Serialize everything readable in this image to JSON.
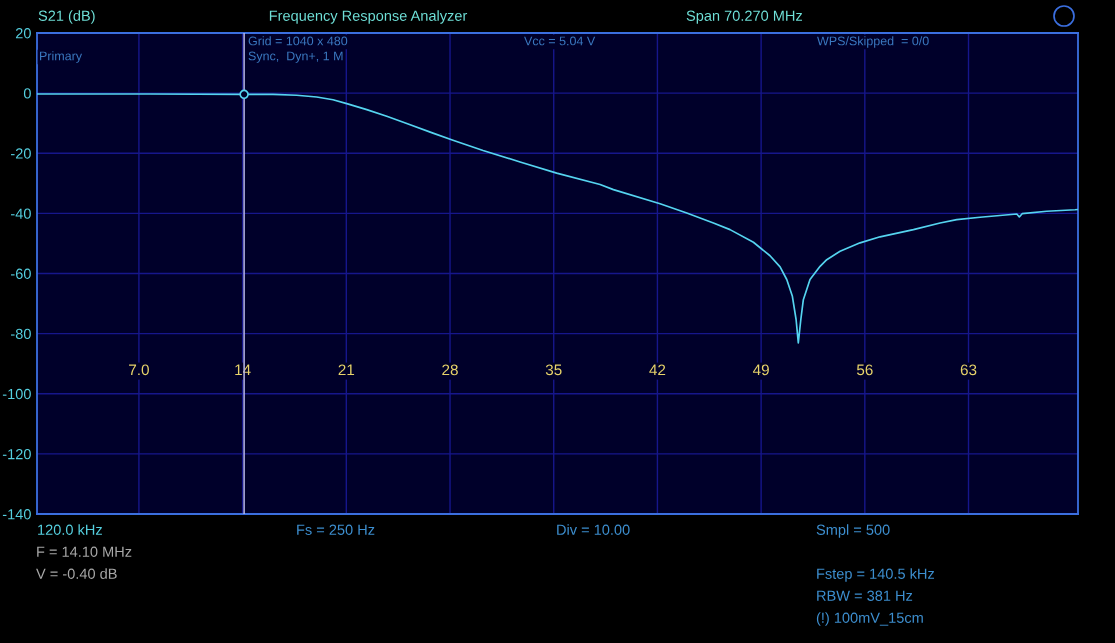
{
  "chart_data": {
    "type": "line",
    "title": "Frequency Response Analyzer",
    "ylabel": "S21 (dB)",
    "x": [
      0.12,
      7.75,
      14.1,
      16.05,
      17.65,
      19.0,
      20.1,
      21.03,
      22.38,
      23.73,
      25.08,
      26.85,
      28.2,
      30.23,
      32.73,
      35.2,
      38.13,
      39.03,
      42.18,
      43.98,
      45.78,
      46.9,
      48.48,
      49.6,
      50.28,
      50.73,
      51.11,
      51.36,
      51.51,
      51.68,
      51.85,
      52.3,
      52.98,
      53.43,
      54.33,
      55.68,
      57.03,
      59.28,
      61.08,
      62.2,
      63.78,
      66.26,
      66.43,
      66.62,
      68.28,
      70.19,
      70.39
    ],
    "series": [
      {
        "color": "#55d4f0",
        "values": [
          -0.3,
          -0.3,
          -0.4,
          -0.4,
          -0.7,
          -1.3,
          -2.2,
          -3.5,
          -5.5,
          -7.7,
          -10.1,
          -13.3,
          -15.7,
          -19.1,
          -22.9,
          -26.6,
          -30.4,
          -32.1,
          -36.8,
          -39.9,
          -43.2,
          -45.4,
          -49.6,
          -54.1,
          -57.8,
          -62.0,
          -67.6,
          -75.3,
          -83.1,
          -75.3,
          -68.7,
          -62.0,
          -57.6,
          -55.4,
          -52.6,
          -49.8,
          -47.8,
          -45.4,
          -43.2,
          -42.1,
          -41.3,
          -40.2,
          -41.2,
          -40.1,
          -39.3,
          -38.8,
          -38.7
        ]
      },
      {
        "type": "scatter",
        "x": [
          14.1
        ],
        "values": [
          -0.4
        ],
        "color": "#55d4f0",
        "marker": "circle"
      }
    ],
    "xlim": [
      0.12,
      70.39
    ],
    "xticks": [
      {
        "value": 7.0,
        "label": "7.0"
      },
      14,
      21,
      28,
      35,
      42,
      49,
      56,
      63
    ],
    "ylim": [
      -140,
      20
    ],
    "yticks": [
      20,
      0,
      -20,
      -40,
      -60,
      -80,
      -100,
      -120,
      -140
    ],
    "grid": true,
    "ref_lines": [
      {
        "axis": "x",
        "value": 14.1,
        "color": "#b4b4e8"
      }
    ],
    "annotations": [
      "Span 70.270 MHz",
      "Primary",
      "Grid = 1040 x 480",
      "Sync,  Dyn+, 1 M",
      "Vcc = 5.04 V",
      "WPS/Skipped  = 0/0",
      "120.0 kHz",
      "Fs = 250 Hz",
      "Div = 10.00",
      "Smpl = 500",
      "F = 14.10 MHz",
      "V = -0.40 dB",
      "Fstep = 140.5 kHz",
      "RBW = 381 Hz",
      "(!) 100mV_15cm"
    ]
  }
}
